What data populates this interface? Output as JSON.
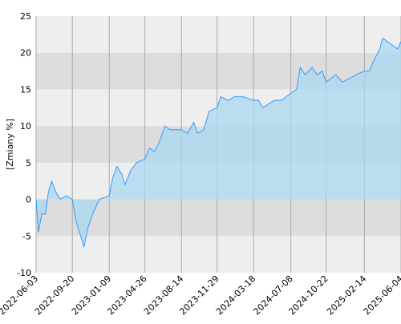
{
  "chart_data": {
    "type": "area",
    "y_label": "[Zmiany %]",
    "x": [
      "2022-06-03",
      "2022-06-10",
      "2022-06-20",
      "2022-07-01",
      "2022-07-10",
      "2022-07-20",
      "2022-08-01",
      "2022-08-15",
      "2022-09-01",
      "2022-09-20",
      "2022-10-01",
      "2022-10-15",
      "2022-10-25",
      "2022-11-05",
      "2022-11-20",
      "2022-12-10",
      "2023-01-09",
      "2023-01-20",
      "2023-02-01",
      "2023-02-15",
      "2023-02-25",
      "2023-03-15",
      "2023-04-01",
      "2023-04-26",
      "2023-05-10",
      "2023-05-25",
      "2023-06-10",
      "2023-06-25",
      "2023-07-10",
      "2023-08-14",
      "2023-09-01",
      "2023-09-20",
      "2023-10-01",
      "2023-10-20",
      "2023-11-05",
      "2023-11-29",
      "2023-12-10",
      "2024-01-01",
      "2024-01-20",
      "2024-02-15",
      "2024-03-18",
      "2024-04-01",
      "2024-04-15",
      "2024-05-01",
      "2024-05-20",
      "2024-06-10",
      "2024-07-08",
      "2024-07-25",
      "2024-08-05",
      "2024-08-20",
      "2024-09-10",
      "2024-09-25",
      "2024-10-10",
      "2024-10-22",
      "2024-11-05",
      "2024-11-20",
      "2024-12-10",
      "2025-01-01",
      "2025-01-20",
      "2025-02-14",
      "2025-03-01",
      "2025-03-15",
      "2025-04-01",
      "2025-04-10",
      "2025-04-25",
      "2025-05-10",
      "2025-05-25",
      "2025-06-04"
    ],
    "series": [
      {
        "color": "#3399ff",
        "fill": "#a8d8ef",
        "values": [
          0,
          -4.5,
          -2,
          -2,
          1,
          2.5,
          1,
          0,
          0.5,
          0,
          -3,
          -5,
          -6.5,
          -4,
          -2,
          0,
          0.5,
          3,
          4.5,
          3.5,
          2,
          4,
          5,
          5.5,
          7,
          6.5,
          8,
          10,
          9.5,
          9.5,
          9,
          10.5,
          9,
          9.5,
          12,
          12.5,
          14,
          13.5,
          14,
          14,
          13.5,
          13.5,
          12.5,
          13,
          13.5,
          13.5,
          14.5,
          15,
          18,
          17,
          18,
          17,
          17.5,
          16,
          16.5,
          17,
          16,
          16.5,
          17,
          17.5,
          17.5,
          19,
          20.5,
          22,
          21.5,
          21,
          20.5,
          21.5
        ]
      }
    ],
    "xlim": [
      "2022-06-03",
      "2025-06-04"
    ],
    "xticks": [
      "2022-06-03",
      "2022-09-20",
      "2023-01-09",
      "2023-04-26",
      "2023-08-14",
      "2023-11-29",
      "2024-03-18",
      "2024-07-08",
      "2024-10-22",
      "2025-02-14",
      "2025-06-04"
    ],
    "ylim": [
      -10,
      25
    ],
    "yticks": [
      -10,
      -5,
      0,
      5,
      10,
      15,
      20,
      25
    ],
    "band_colors": [
      "#eeeeee",
      "#dddddd"
    ],
    "grid": true
  }
}
